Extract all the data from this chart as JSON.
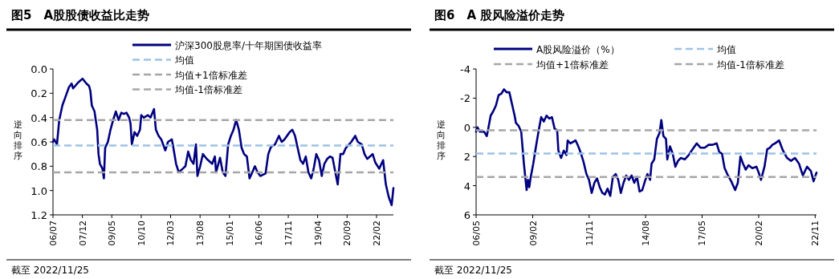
{
  "chart_data": [
    {
      "type": "line",
      "title": "图5　A股股债收益比走势",
      "ylabel": "逆向排序",
      "legend": "top",
      "ylim": [
        1.2,
        0.0
      ],
      "yticks": [
        {
          "value": 0.0,
          "label": "0.0"
        },
        {
          "value": 0.2,
          "label": "0.2"
        },
        {
          "value": 0.4,
          "label": "0.4"
        },
        {
          "value": 0.6,
          "label": "0.6"
        },
        {
          "value": 0.8,
          "label": "0.8"
        },
        {
          "value": 1.0,
          "label": "1.0"
        },
        {
          "value": 1.2,
          "label": "1.2"
        }
      ],
      "xlim": [
        "2006-07-01",
        "2022-11-25"
      ],
      "xticks": [
        {
          "value": "2006-07",
          "label": "06/07"
        },
        {
          "value": "2007-12",
          "label": "07/12"
        },
        {
          "value": "2009-05",
          "label": "09/05"
        },
        {
          "value": "2010-10",
          "label": "10/10"
        },
        {
          "value": "2012-03",
          "label": "12/03"
        },
        {
          "value": "2013-08",
          "label": "13/08"
        },
        {
          "value": "2015-01",
          "label": "15/01"
        },
        {
          "value": "2016-06",
          "label": "16/06"
        },
        {
          "value": "2017-11",
          "label": "17/11"
        },
        {
          "value": "2019-04",
          "label": "19/04"
        },
        {
          "value": "2020-09",
          "label": "20/09"
        },
        {
          "value": "2022-02",
          "label": "22/02"
        }
      ],
      "ref_lines": [
        {
          "axis": "y",
          "value": 0.63,
          "label": "均值",
          "color": "#9dc3e6",
          "line_style": "dashed"
        },
        {
          "axis": "y",
          "value": 0.42,
          "label": "均值+1倍标准差",
          "color": "#a6a6a6",
          "line_style": "dashed"
        },
        {
          "axis": "y",
          "value": 0.85,
          "label": "均值-1倍标准差",
          "color": "#a6a6a6",
          "line_style": "dashed"
        }
      ],
      "annotations": [
        "截至 2022/11/25"
      ],
      "series": [
        {
          "name": "沪深300股息率/十年期国债收益率",
          "color": "#000080",
          "x": [
            "2006-07-01",
            "2006-07-22",
            "2006-09-09",
            "2006-10-19",
            "2006-12-13",
            "2007-01-29",
            "2007-04-08",
            "2007-05-25",
            "2007-06-20",
            "2007-09-20",
            "2007-12-02",
            "2008-02-10",
            "2008-03-27",
            "2008-04-19",
            "2008-05-14",
            "2008-07-01",
            "2008-08-17",
            "2008-09-09",
            "2008-10-04",
            "2008-11-17",
            "2008-12-13",
            "2009-01-04",
            "2009-02-21",
            "2009-04-08",
            "2009-05-25",
            "2009-07-11",
            "2009-08-28",
            "2009-10-15",
            "2009-11-28",
            "2010-01-15",
            "2010-03-02",
            "2010-03-27",
            "2010-04-19",
            "2010-06-05",
            "2010-07-22",
            "2010-09-09",
            "2010-10-01",
            "2010-11-17",
            "2011-01-26",
            "2011-03-13",
            "2011-05-14",
            "2011-06-16",
            "2011-08-03",
            "2011-09-20",
            "2011-11-28",
            "2012-01-15",
            "2012-03-23",
            "2012-04-19",
            "2012-06-05",
            "2012-07-22",
            "2012-10-01",
            "2012-11-17",
            "2013-01-04",
            "2013-02-21",
            "2013-04-08",
            "2013-05-21",
            "2013-06-16",
            "2013-08-03",
            "2013-09-20",
            "2013-11-28",
            "2014-03-02",
            "2014-04-19",
            "2014-05-10",
            "2014-07-19",
            "2014-09-05",
            "2014-10-22",
            "2014-12-09",
            "2015-01-26",
            "2015-03-13",
            "2015-04-29",
            "2015-06-16",
            "2015-08-03",
            "2015-09-16",
            "2015-11-03",
            "2015-12-20",
            "2016-02-07",
            "2016-03-23",
            "2016-05-10",
            "2016-06-27",
            "2016-09-27",
            "2016-11-14",
            "2017-01-01",
            "2017-03-13",
            "2017-05-21",
            "2017-07-08",
            "2017-08-25",
            "2017-11-25",
            "2018-01-11",
            "2018-02-28",
            "2018-04-15",
            "2018-06-02",
            "2018-07-19",
            "2018-09-05",
            "2018-10-22",
            "2018-12-09",
            "2019-01-22",
            "2019-03-09",
            "2019-04-26",
            "2019-06-13",
            "2019-07-29",
            "2019-09-16",
            "2019-11-03",
            "2019-12-20",
            "2020-02-07",
            "2020-03-20",
            "2020-05-07",
            "2020-06-23",
            "2020-08-10",
            "2020-11-14",
            "2021-01-22",
            "2021-03-09",
            "2021-05-17",
            "2021-07-04",
            "2021-08-21",
            "2021-10-08",
            "2021-11-25",
            "2022-01-11",
            "2022-03-20",
            "2022-05-28",
            "2022-07-15",
            "2022-09-02",
            "2022-10-25",
            "2022-11-25"
          ],
          "values": [
            0.6,
            0.58,
            0.62,
            0.42,
            0.3,
            0.24,
            0.15,
            0.12,
            0.16,
            0.11,
            0.08,
            0.12,
            0.14,
            0.18,
            0.3,
            0.35,
            0.5,
            0.7,
            0.78,
            0.82,
            0.9,
            0.65,
            0.6,
            0.5,
            0.42,
            0.35,
            0.42,
            0.36,
            0.37,
            0.36,
            0.4,
            0.45,
            0.62,
            0.52,
            0.55,
            0.5,
            0.38,
            0.4,
            0.38,
            0.4,
            0.33,
            0.5,
            0.55,
            0.58,
            0.67,
            0.6,
            0.58,
            0.65,
            0.78,
            0.85,
            0.82,
            0.8,
            0.68,
            0.75,
            0.78,
            0.62,
            0.88,
            0.8,
            0.7,
            0.74,
            0.78,
            0.72,
            0.85,
            0.73,
            0.85,
            0.88,
            0.62,
            0.55,
            0.5,
            0.42,
            0.5,
            0.65,
            0.7,
            0.72,
            0.9,
            0.85,
            0.8,
            0.85,
            0.88,
            0.86,
            0.7,
            0.64,
            0.62,
            0.55,
            0.6,
            0.58,
            0.52,
            0.5,
            0.55,
            0.65,
            0.75,
            0.78,
            0.72,
            0.85,
            0.9,
            0.82,
            0.7,
            0.75,
            0.88,
            0.78,
            0.74,
            0.72,
            0.73,
            0.85,
            0.95,
            0.7,
            0.7,
            0.65,
            0.6,
            0.55,
            0.6,
            0.62,
            0.7,
            0.74,
            0.72,
            0.7,
            0.77,
            0.82,
            0.75,
            0.95,
            1.05,
            1.12,
            0.98
          ]
        }
      ]
    },
    {
      "type": "line",
      "title": "图6　A 股风险溢价走势",
      "ylabel": "逆向排序",
      "legend": "top",
      "ylim": [
        6,
        -4
      ],
      "yticks": [
        -4,
        -2,
        0,
        2,
        4,
        6
      ],
      "xlim": [
        "2006-05-01",
        "2022-11-25"
      ],
      "xticks": [
        {
          "value": "2006-05",
          "label": "06/05"
        },
        {
          "value": "2009-02",
          "label": "09/02"
        },
        {
          "value": "2011-11",
          "label": "11/11"
        },
        {
          "value": "2014-08",
          "label": "14/08"
        },
        {
          "value": "2017-05",
          "label": "17/05"
        },
        {
          "value": "2020-02",
          "label": "20/02"
        },
        {
          "value": "2022-11",
          "label": "22/11"
        }
      ],
      "ref_lines": [
        {
          "axis": "y",
          "value": 1.8,
          "label": "均值",
          "color": "#9dc3e6",
          "line_style": "dashed"
        },
        {
          "axis": "y",
          "value": 0.2,
          "label": "均值+1倍标准差",
          "color": "#a6a6a6",
          "line_style": "dashed"
        },
        {
          "axis": "y",
          "value": 3.4,
          "label": "均值-1倍标准差",
          "color": "#a6a6a6",
          "line_style": "dashed"
        }
      ],
      "annotations": [
        "截至 2022/11/25"
      ],
      "series": [
        {
          "name": "A股风险溢价（%）",
          "color": "#000080",
          "x": [
            "2006-05-01",
            "2006-05-25",
            "2006-07-08",
            "2006-09-20",
            "2006-11-07",
            "2006-11-28",
            "2007-01-15",
            "2007-03-02",
            "2007-04-19",
            "2007-06-05",
            "2007-07-22",
            "2007-09-09",
            "2007-10-26",
            "2007-12-13",
            "2008-01-29",
            "2008-03-16",
            "2008-04-08",
            "2008-05-25",
            "2008-07-11",
            "2008-08-28",
            "2008-10-15",
            "2008-11-07",
            "2008-12-02",
            "2008-12-23",
            "2009-02-10",
            "2009-03-27",
            "2009-05-14",
            "2009-07-01",
            "2009-08-17",
            "2009-10-04",
            "2009-11-21",
            "2010-01-08",
            "2010-02-25",
            "2010-04-11",
            "2010-05-03",
            "2010-06-20",
            "2010-08-07",
            "2010-09-23",
            "2010-10-15",
            "2010-12-02",
            "2011-01-19",
            "2011-03-05",
            "2011-04-22",
            "2011-06-09",
            "2011-07-26",
            "2011-09-13",
            "2011-10-29",
            "2011-12-16",
            "2012-02-03",
            "2012-03-20",
            "2012-05-07",
            "2012-06-23",
            "2012-08-07",
            "2012-09-23",
            "2012-11-10",
            "2012-12-27",
            "2013-02-14",
            "2013-04-01",
            "2013-05-17",
            "2013-07-04",
            "2013-08-21",
            "2013-10-08",
            "2013-11-25",
            "2014-01-11",
            "2014-02-28",
            "2014-04-15",
            "2014-06-02",
            "2014-07-19",
            "2014-09-02",
            "2014-10-19",
            "2014-11-14",
            "2015-01-01",
            "2015-02-17",
            "2015-04-04",
            "2015-05-07",
            "2015-06-13",
            "2015-07-29",
            "2015-08-21",
            "2015-10-08",
            "2015-11-25",
            "2016-01-11",
            "2016-02-28",
            "2016-04-15",
            "2016-06-27",
            "2016-09-05",
            "2016-11-14",
            "2017-01-26",
            "2017-04-04",
            "2017-06-16",
            "2017-08-25",
            "2017-11-03",
            "2018-01-15",
            "2018-03-02",
            "2018-04-19",
            "2018-06-05",
            "2018-07-22",
            "2018-10-01",
            "2018-12-09",
            "2019-01-26",
            "2019-03-13",
            "2019-04-29",
            "2019-06-16",
            "2019-08-03",
            "2019-10-11",
            "2019-12-23",
            "2020-02-10",
            "2020-03-13",
            "2020-05-14",
            "2020-07-01",
            "2020-08-17",
            "2020-10-01",
            "2020-11-17",
            "2021-01-29",
            "2021-04-08",
            "2021-06-20",
            "2021-08-28",
            "2021-11-07",
            "2022-01-19",
            "2022-03-27",
            "2022-06-09",
            "2022-08-17",
            "2022-10-04",
            "2022-11-25"
          ],
          "values": [
            0.3,
            0.0,
            0.3,
            0.3,
            0.6,
            0.2,
            -0.8,
            -1.1,
            -1.5,
            -2.2,
            -2.3,
            -2.6,
            -2.4,
            -2.4,
            -1.6,
            -0.8,
            -0.3,
            -0.1,
            0.3,
            2.5,
            4.3,
            3.6,
            4.1,
            3.5,
            2.5,
            1.4,
            0.3,
            -0.7,
            -0.4,
            -0.8,
            -0.6,
            -0.7,
            0.1,
            0.2,
            1.6,
            2.1,
            1.6,
            1.9,
            0.9,
            1.1,
            1.0,
            0.9,
            1.3,
            1.8,
            2.4,
            3.2,
            3.6,
            4.5,
            3.8,
            3.5,
            4.1,
            4.5,
            4.6,
            4.2,
            4.7,
            3.4,
            3.2,
            3.6,
            4.5,
            3.8,
            3.3,
            3.6,
            3.3,
            3.8,
            3.4,
            4.4,
            4.3,
            3.7,
            3.2,
            3.6,
            2.5,
            2.2,
            0.8,
            0.4,
            -0.5,
            0.6,
            0.8,
            2.2,
            1.3,
            1.8,
            2.7,
            2.3,
            2.1,
            2.2,
            1.9,
            1.5,
            1.1,
            1.4,
            1.4,
            1.2,
            1.2,
            1.1,
            1.7,
            1.8,
            2.8,
            3.2,
            3.7,
            4.3,
            3.8,
            2.0,
            2.5,
            2.9,
            2.6,
            2.8,
            2.7,
            3.2,
            3.6,
            2.7,
            1.5,
            1.4,
            1.2,
            1.1,
            0.9,
            1.6,
            2.1,
            2.3,
            2.1,
            2.5,
            3.3,
            2.7,
            3.0,
            3.7,
            3.1
          ]
        }
      ]
    }
  ]
}
